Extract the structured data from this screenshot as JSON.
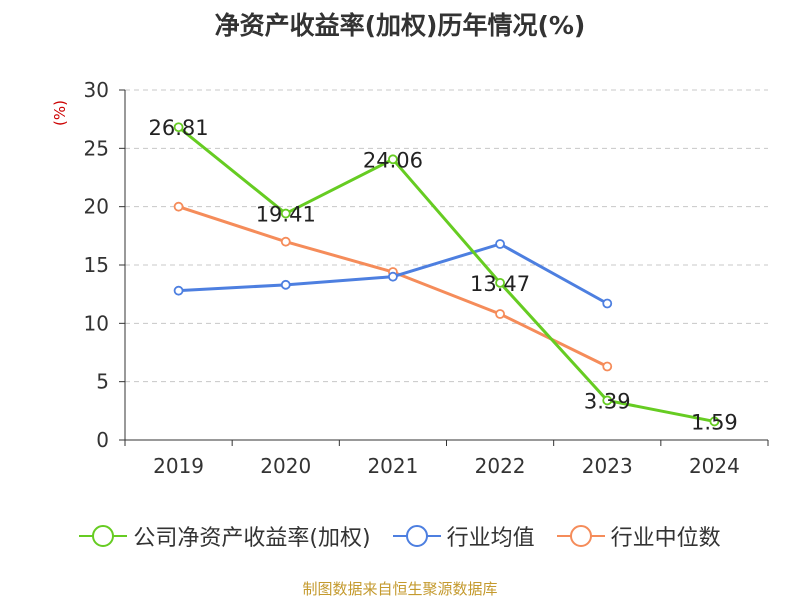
{
  "title": "净资产收益率(加权)历年情况(%)",
  "unit_label": "(%)",
  "source": "制图数据来自恒生聚源数据库",
  "colors": {
    "series1": "#66cc22",
    "series2": "#4d7fe0",
    "series3": "#f58c5a",
    "grid": "#c8c8c8",
    "axis": "#333333",
    "unit": "#cc0000"
  },
  "chart_data": {
    "type": "line",
    "title": "净资产收益率(加权)历年情况(%)",
    "xlabel": "",
    "ylabel": "(%)",
    "ylim": [
      0,
      30
    ],
    "yticks": [
      0,
      5,
      10,
      15,
      20,
      25,
      30
    ],
    "grid": true,
    "legend_position": "bottom",
    "categories": [
      "2019",
      "2020",
      "2021",
      "2022",
      "2023",
      "2024"
    ],
    "series": [
      {
        "name": "公司净资产收益率(加权)",
        "values": [
          26.81,
          19.41,
          24.06,
          13.47,
          3.39,
          1.59
        ],
        "labels": [
          "26.81",
          "19.41",
          "24.06",
          "13.47",
          "3.39",
          "1.59"
        ],
        "color": "#66cc22"
      },
      {
        "name": "行业均值",
        "values": [
          12.8,
          13.3,
          14.0,
          16.8,
          11.7,
          null
        ],
        "color": "#4d7fe0"
      },
      {
        "name": "行业中位数",
        "values": [
          20.0,
          17.0,
          14.4,
          10.8,
          6.3,
          null
        ],
        "color": "#f58c5a"
      }
    ]
  }
}
